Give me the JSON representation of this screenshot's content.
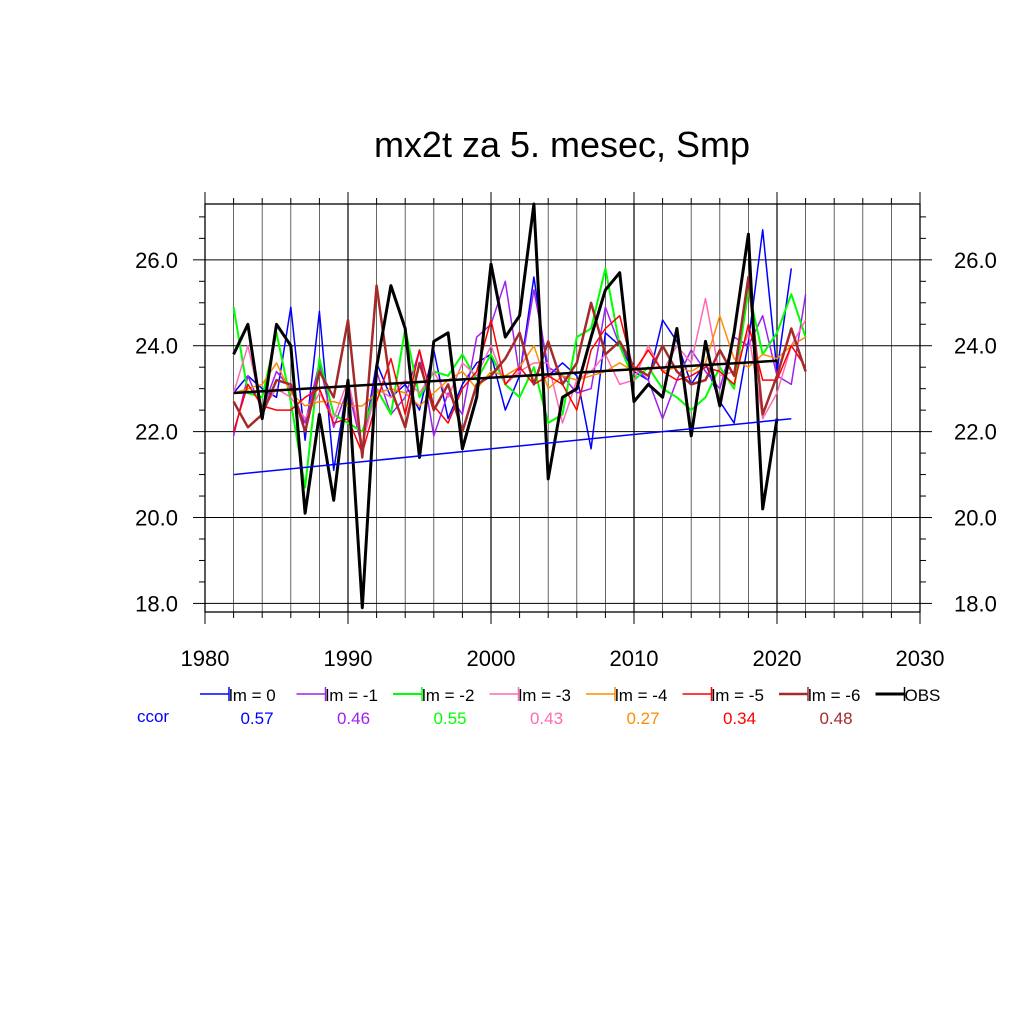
{
  "chart_data": {
    "type": "line",
    "title": "mx2t za 5. mesec, Smp",
    "xlabel": "",
    "ylabel": "",
    "xlim": [
      1980,
      2030
    ],
    "ylim": [
      17.8,
      27.3
    ],
    "x_ticks": [
      1980,
      1990,
      2000,
      2010,
      2020,
      2030
    ],
    "x_tick_labels": [
      "1980",
      "1990",
      "2000",
      "2010",
      "2020",
      "2030"
    ],
    "y_ticks": [
      18,
      20,
      22,
      24,
      26
    ],
    "y_tick_labels": [
      "18.0",
      "20.0",
      "22.0",
      "24.0",
      "26.0"
    ],
    "grid": true,
    "legend_position": "bottom",
    "ccor_label": "ccor",
    "ccor_color": "#0000ff",
    "series": [
      {
        "name": "lm = 0",
        "ccor": "0.57",
        "color": "#0000ff",
        "width": 1.5,
        "x": [
          1982,
          1983,
          1984,
          1985,
          1986,
          1987,
          1988,
          1989,
          1990,
          1991,
          1992,
          1993,
          1994,
          1995,
          1996,
          1997,
          1998,
          1999,
          2000,
          2001,
          2002,
          2003,
          2004,
          2005,
          2006,
          2007,
          2008,
          2009,
          2010,
          2011,
          2012,
          2013,
          2014,
          2015,
          2016,
          2017,
          2018,
          2019,
          2020,
          2021
        ],
        "values": [
          22.9,
          23.3,
          23.0,
          22.8,
          24.9,
          21.8,
          24.8,
          21.1,
          23.2,
          21.6,
          23.6,
          22.8,
          23.1,
          22.5,
          23.9,
          22.3,
          23.1,
          23.6,
          23.8,
          22.5,
          23.3,
          25.6,
          23.3,
          23.6,
          23.3,
          21.6,
          24.3,
          24.0,
          23.4,
          23.2,
          24.6,
          24.1,
          23.1,
          23.6,
          22.7,
          22.2,
          24.1,
          26.7,
          23.4,
          25.8
        ]
      },
      {
        "name": "lm = -1",
        "ccor": "0.46",
        "color": "#a020f0",
        "width": 1.5,
        "x": [
          1982,
          1983,
          1984,
          1985,
          1986,
          1987,
          1988,
          1989,
          1990,
          1991,
          1992,
          1993,
          1994,
          1995,
          1996,
          1997,
          1998,
          1999,
          2000,
          2001,
          2002,
          2003,
          2004,
          2005,
          2006,
          2007,
          2008,
          2009,
          2010,
          2011,
          2012,
          2013,
          2014,
          2015,
          2016,
          2017,
          2018,
          2019,
          2020,
          2021,
          2022
        ],
        "values": [
          21.9,
          23.3,
          22.5,
          23.4,
          23.0,
          22.2,
          23.6,
          22.1,
          23.0,
          21.6,
          23.4,
          22.4,
          22.8,
          23.9,
          21.9,
          22.9,
          22.4,
          24.2,
          24.5,
          25.5,
          23.3,
          25.3,
          23.5,
          23.3,
          22.9,
          23.0,
          24.9,
          24.0,
          23.5,
          23.2,
          22.3,
          23.2,
          23.9,
          23.4,
          23.0,
          24.2,
          24.0,
          24.7,
          23.3,
          23.1,
          25.2
        ]
      },
      {
        "name": "lm = -2",
        "ccor": "0.55",
        "color": "#00ff00",
        "width": 2,
        "x": [
          1982,
          1983,
          1984,
          1985,
          1986,
          1987,
          1988,
          1989,
          1990,
          1991,
          1992,
          1993,
          1994,
          1995,
          1996,
          1997,
          1998,
          1999,
          2000,
          2001,
          2002,
          2003,
          2004,
          2005,
          2006,
          2007,
          2008,
          2009,
          2010,
          2011,
          2012,
          2013,
          2014,
          2015,
          2016,
          2017,
          2018,
          2019,
          2020,
          2021,
          2022
        ],
        "values": [
          24.9,
          22.9,
          22.8,
          24.3,
          22.7,
          20.7,
          23.7,
          22.4,
          22.2,
          22.0,
          23.0,
          22.4,
          24.4,
          22.8,
          23.4,
          23.3,
          23.8,
          23.2,
          23.8,
          23.1,
          22.8,
          23.5,
          22.2,
          22.4,
          24.2,
          24.4,
          25.8,
          24.0,
          23.2,
          23.5,
          23.0,
          22.8,
          22.5,
          22.8,
          23.5,
          23.0,
          25.3,
          23.8,
          24.3,
          25.2,
          24.2
        ]
      },
      {
        "name": "lm = -3",
        "ccor": "0.43",
        "color": "#ff69b4",
        "width": 1.5,
        "x": [
          1982,
          1983,
          1984,
          1985,
          1986,
          1987,
          1988,
          1989,
          1990,
          1991,
          1992,
          1993,
          1994,
          1995,
          1996,
          1997,
          1998,
          1999,
          2000,
          2001,
          2002,
          2003,
          2004,
          2005,
          2006,
          2007,
          2008,
          2009,
          2010,
          2011,
          2012,
          2013,
          2014,
          2015,
          2016,
          2017,
          2018,
          2019,
          2020,
          2021,
          2022
        ],
        "values": [
          22.9,
          24.0,
          22.5,
          23.0,
          22.8,
          22.3,
          22.9,
          22.3,
          23.2,
          21.7,
          23.0,
          22.8,
          23.2,
          22.9,
          23.4,
          22.8,
          23.6,
          23.3,
          24.0,
          23.1,
          23.4,
          23.6,
          23.6,
          22.2,
          23.2,
          23.4,
          23.8,
          23.1,
          23.2,
          24.0,
          23.4,
          24.0,
          23.6,
          25.1,
          23.3,
          23.4,
          24.3,
          22.3,
          22.9,
          24.0,
          24.6
        ]
      },
      {
        "name": "lm = -4",
        "ccor": "0.27",
        "color": "#ff8c00",
        "width": 1.5,
        "x": [
          1982,
          1983,
          1984,
          1985,
          1986,
          1987,
          1988,
          1989,
          1990,
          1991,
          1992,
          1993,
          1994,
          1995,
          1996,
          1997,
          1998,
          1999,
          2000,
          2001,
          2002,
          2003,
          2004,
          2005,
          2006,
          2007,
          2008,
          2009,
          2010,
          2011,
          2012,
          2013,
          2014,
          2015,
          2016,
          2017,
          2018,
          2019,
          2020,
          2021,
          2022
        ],
        "values": [
          22.9,
          23.0,
          23.1,
          23.6,
          22.9,
          22.6,
          22.7,
          22.7,
          22.6,
          22.6,
          22.9,
          23.0,
          22.9,
          22.6,
          22.9,
          23.2,
          23.4,
          23.0,
          23.4,
          23.3,
          23.5,
          24.0,
          23.0,
          23.3,
          23.2,
          23.3,
          23.4,
          23.6,
          23.4,
          23.9,
          23.4,
          23.5,
          23.4,
          23.6,
          24.7,
          23.7,
          23.5,
          23.8,
          23.7,
          24.0,
          24.2
        ]
      },
      {
        "name": "lm = -5",
        "ccor": "0.34",
        "color": "#ff0000",
        "width": 1.5,
        "x": [
          1982,
          1983,
          1984,
          1985,
          1986,
          1987,
          1988,
          1989,
          1990,
          1991,
          1992,
          1993,
          1994,
          1995,
          1996,
          1997,
          1998,
          1999,
          2000,
          2001,
          2002,
          2003,
          2004,
          2005,
          2006,
          2007,
          2008,
          2009,
          2010,
          2011,
          2012,
          2013,
          2014,
          2015,
          2016,
          2017,
          2018,
          2019,
          2020,
          2021,
          2022
        ],
        "values": [
          22.0,
          23.1,
          22.6,
          22.5,
          22.5,
          22.8,
          23.0,
          22.2,
          22.3,
          21.5,
          22.7,
          23.7,
          22.4,
          23.9,
          22.6,
          22.2,
          23.0,
          23.4,
          24.6,
          23.1,
          23.5,
          23.1,
          23.3,
          23.1,
          22.5,
          23.9,
          24.4,
          24.7,
          23.4,
          23.9,
          23.4,
          23.2,
          23.3,
          23.5,
          23.4,
          23.1,
          24.5,
          23.2,
          23.2,
          24.0,
          23.5
        ]
      },
      {
        "name": "lm = -6",
        "ccor": "0.48",
        "color": "#a52a2a",
        "width": 2.5,
        "x": [
          1982,
          1983,
          1984,
          1985,
          1986,
          1987,
          1988,
          1989,
          1990,
          1991,
          1992,
          1993,
          1994,
          1995,
          1996,
          1997,
          1998,
          1999,
          2000,
          2001,
          2002,
          2003,
          2004,
          2005,
          2006,
          2007,
          2008,
          2009,
          2010,
          2011,
          2012,
          2013,
          2014,
          2015,
          2016,
          2017,
          2018,
          2019,
          2020,
          2021,
          2022
        ],
        "values": [
          22.7,
          22.1,
          22.4,
          23.2,
          23.1,
          22.0,
          23.4,
          22.8,
          24.6,
          21.4,
          25.4,
          23.0,
          22.1,
          23.6,
          22.5,
          23.1,
          22.0,
          23.1,
          23.3,
          23.7,
          24.3,
          23.1,
          24.1,
          23.1,
          23.6,
          25.0,
          23.8,
          24.1,
          23.5,
          23.3,
          24.0,
          23.4,
          23.1,
          23.2,
          23.9,
          23.3,
          25.6,
          22.4,
          23.3,
          24.4,
          23.4
        ]
      },
      {
        "name": "OBS",
        "ccor": "",
        "color": "#000000",
        "width": 3,
        "x": [
          1982,
          1983,
          1984,
          1985,
          1986,
          1987,
          1988,
          1989,
          1990,
          1991,
          1992,
          1993,
          1994,
          1995,
          1996,
          1997,
          1998,
          1999,
          2000,
          2001,
          2002,
          2003,
          2004,
          2005,
          2006,
          2007,
          2008,
          2009,
          2010,
          2011,
          2012,
          2013,
          2014,
          2015,
          2016,
          2017,
          2018,
          2019,
          2020
        ],
        "values": [
          23.8,
          24.5,
          22.3,
          24.5,
          24.0,
          20.1,
          22.4,
          20.4,
          23.2,
          17.9,
          23.5,
          25.4,
          24.4,
          21.4,
          24.1,
          24.3,
          21.6,
          22.8,
          25.9,
          24.2,
          24.7,
          27.3,
          20.9,
          22.8,
          23.0,
          24.2,
          25.3,
          25.7,
          22.7,
          23.1,
          22.8,
          24.4,
          21.9,
          24.1,
          22.6,
          24.3,
          26.6,
          20.2,
          22.3
        ]
      }
    ],
    "trend_lines": [
      {
        "color": "#0000ff",
        "width": 1.5,
        "x": [
          1982,
          2021
        ],
        "values": [
          21.0,
          22.3
        ]
      },
      {
        "color": "#000000",
        "width": 2.5,
        "x": [
          1982,
          2020
        ],
        "values": [
          22.9,
          23.65
        ]
      }
    ]
  }
}
